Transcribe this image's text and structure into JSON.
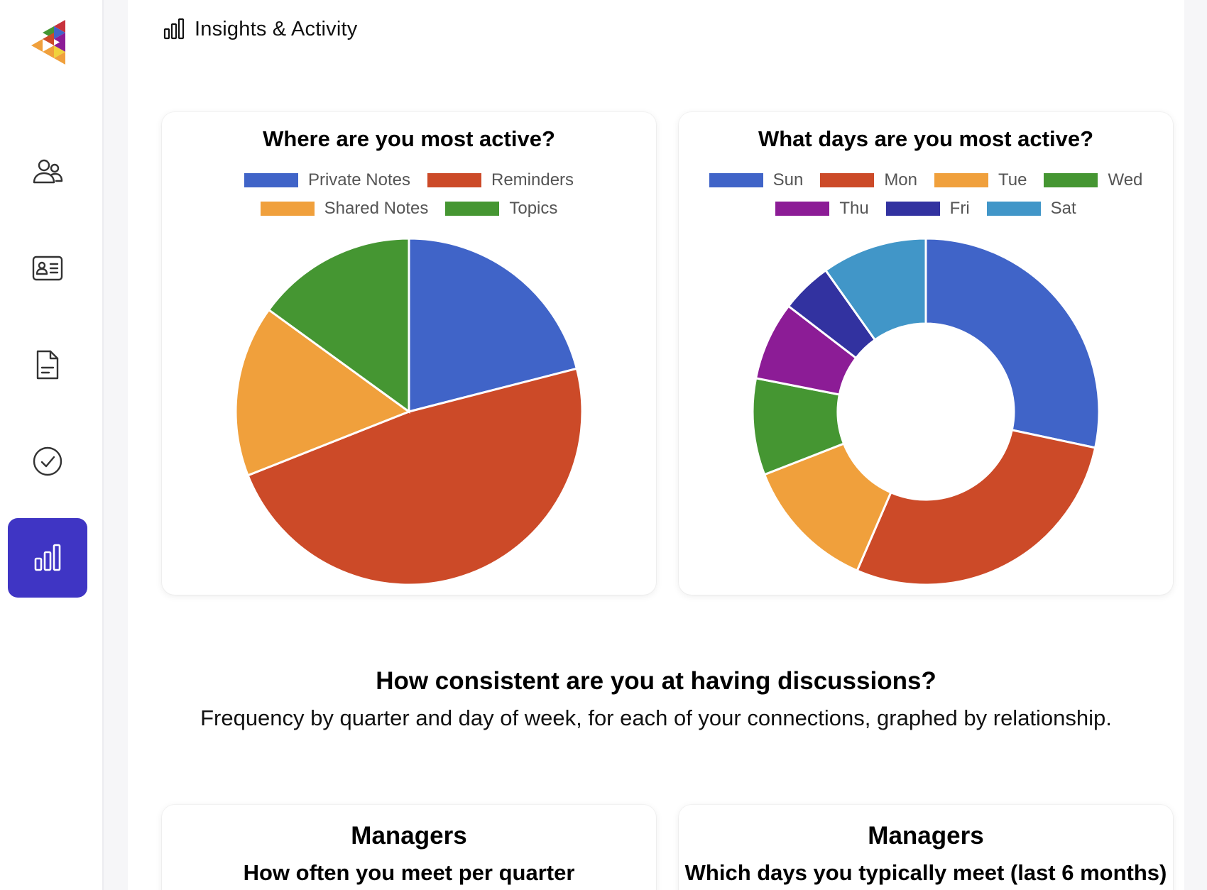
{
  "header": {
    "title": "Insights & Activity",
    "icon": "bar-chart-icon"
  },
  "sidebar": {
    "logo": "app-logo",
    "items": [
      {
        "name": "people",
        "icon": "people-icon",
        "active": false
      },
      {
        "name": "contacts",
        "icon": "id-card-icon",
        "active": false
      },
      {
        "name": "documents",
        "icon": "document-icon",
        "active": false
      },
      {
        "name": "tasks",
        "icon": "check-circle-icon",
        "active": false
      },
      {
        "name": "insights",
        "icon": "bar-chart-icon",
        "active": true
      }
    ]
  },
  "colors": {
    "accent": "#3f35c4",
    "blue": "#4064c8",
    "red": "#cc4a28",
    "orange": "#f0a03c",
    "green": "#459632",
    "purple": "#8c1c96",
    "indigo": "#3232a0",
    "teal": "#4196c8"
  },
  "chart_data": [
    {
      "type": "pie",
      "title": "Where are you most active?",
      "legend_rows": [
        [
          "Private Notes",
          "Reminders"
        ],
        [
          "Shared Notes",
          "Topics"
        ]
      ],
      "categories": [
        "Private Notes",
        "Reminders",
        "Shared Notes",
        "Topics"
      ],
      "values": [
        21,
        48,
        16,
        15
      ],
      "colors": [
        "#4064c8",
        "#cc4a28",
        "#f0a03c",
        "#459632"
      ],
      "legend_placement": "top"
    },
    {
      "type": "doughnut",
      "title": "What days are you most active?",
      "legend_rows": [
        [
          "Sun",
          "Mon",
          "Tue",
          "Wed"
        ],
        [
          "Thu",
          "Fri",
          "Sat"
        ]
      ],
      "categories": [
        "Sun",
        "Mon",
        "Tue",
        "Wed",
        "Thu",
        "Fri",
        "Sat"
      ],
      "values": [
        28.6,
        28.4,
        12.7,
        9.1,
        7.4,
        4.8,
        9.9
      ],
      "colors": [
        "#4064c8",
        "#cc4a28",
        "#f0a03c",
        "#459632",
        "#8c1c96",
        "#3232a0",
        "#4196c8"
      ],
      "legend_placement": "top"
    }
  ],
  "consistency": {
    "title": "How consistent are you at having discussions?",
    "subtitle": "Frequency by quarter and day of week, for each of your connections, graphed by relationship."
  },
  "bottom_cards": [
    {
      "title": "Managers",
      "subtitle": "How often you meet per quarter"
    },
    {
      "title": "Managers",
      "subtitle": "Which days you typically meet (last 6 months)"
    }
  ]
}
